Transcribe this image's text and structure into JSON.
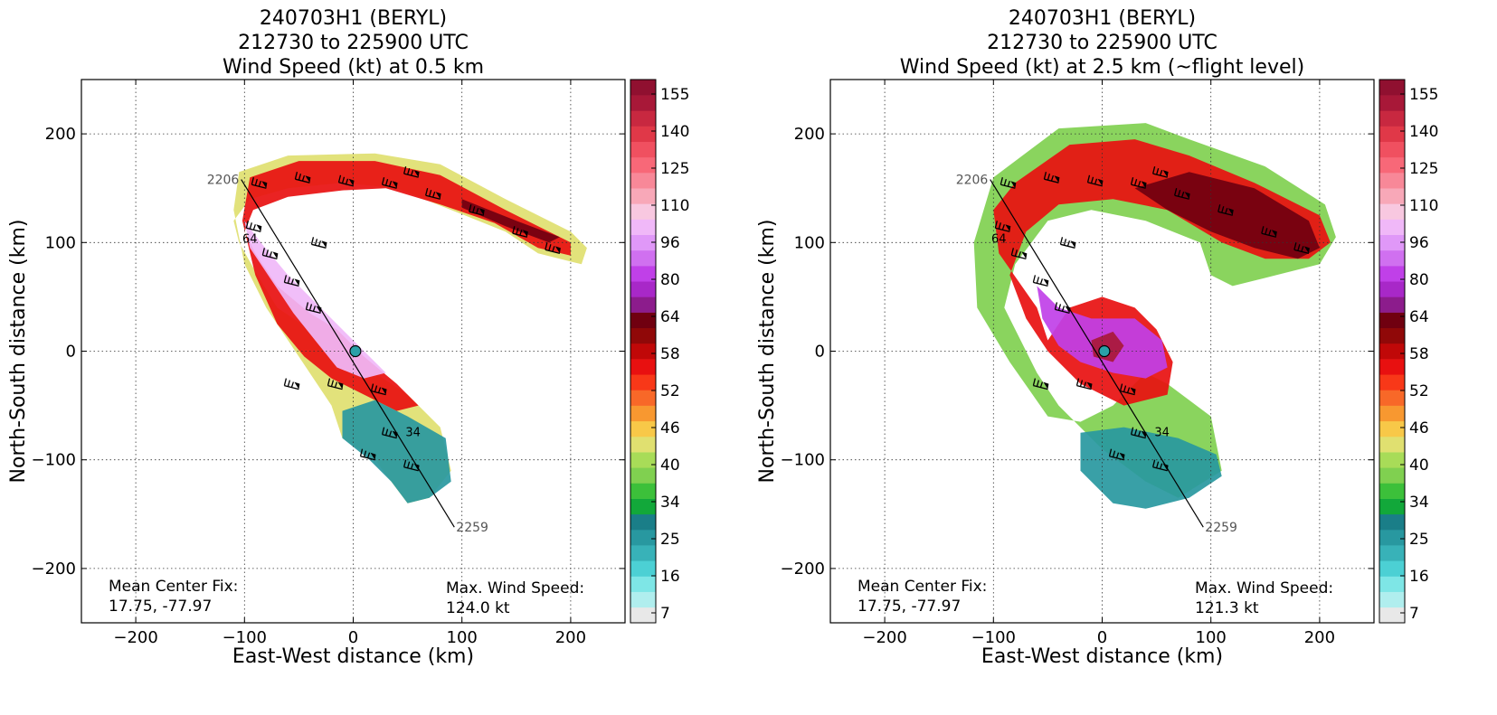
{
  "chart_data": [
    {
      "type": "heatmap",
      "title_lines": [
        "240703H1 (BERYL)",
        "212730 to 225900 UTC",
        "Wind Speed (kt) at 0.5 km"
      ],
      "xlabel": "East-West distance (km)",
      "ylabel": "North-South distance (km)",
      "xlim": [
        -250,
        250
      ],
      "ylim": [
        -250,
        250
      ],
      "xticks": [
        -200,
        -100,
        0,
        100,
        200
      ],
      "yticks": [
        -200,
        -100,
        0,
        100,
        200
      ],
      "grid": true,
      "center_fix_label": "Mean Center Fix:",
      "center_fix_value": "17.75, -77.97",
      "max_wind_label": "Max. Wind Speed:",
      "max_wind_value": "124.0 kt",
      "flight_track": {
        "start_label": "2206",
        "end_label": "2259",
        "start": [
          -103,
          158
        ],
        "end": [
          93,
          -162
        ]
      },
      "contour_labels": [
        "64",
        "34"
      ],
      "colorbar": {
        "tick_labels": [
          "7",
          "16",
          "25",
          "34",
          "40",
          "46",
          "52",
          "58",
          "64",
          "80",
          "96",
          "110",
          "125",
          "140",
          "155"
        ]
      }
    },
    {
      "type": "heatmap",
      "title_lines": [
        "240703H1 (BERYL)",
        "212730 to 225900 UTC",
        "Wind Speed (kt) at 2.5 km (~flight level)"
      ],
      "xlabel": "East-West distance (km)",
      "ylabel": "North-South distance (km)",
      "xlim": [
        -250,
        250
      ],
      "ylim": [
        -250,
        250
      ],
      "xticks": [
        -200,
        -100,
        0,
        100,
        200
      ],
      "yticks": [
        -200,
        -100,
        0,
        100,
        200
      ],
      "grid": true,
      "center_fix_label": "Mean Center Fix:",
      "center_fix_value": "17.75, -77.97",
      "max_wind_label": "Max. Wind Speed:",
      "max_wind_value": "121.3 kt",
      "flight_track": {
        "start_label": "2206",
        "end_label": "2259",
        "start": [
          -103,
          158
        ],
        "end": [
          93,
          -162
        ]
      },
      "contour_labels": [
        "64",
        "34"
      ],
      "colorbar": {
        "tick_labels": [
          "7",
          "16",
          "25",
          "34",
          "40",
          "46",
          "52",
          "58",
          "64",
          "80",
          "96",
          "110",
          "125",
          "140",
          "155"
        ]
      }
    }
  ],
  "colors": {
    "colorbar_bins": [
      "#e8e8e8",
      "#b0eeee",
      "#7ee6e6",
      "#4cd0d4",
      "#38b2b8",
      "#2898a0",
      "#1a7e88",
      "#12a83a",
      "#3cc03a",
      "#80d050",
      "#a8dc58",
      "#e0e070",
      "#f8c848",
      "#f89830",
      "#f86828",
      "#f83818",
      "#e81010",
      "#c00808",
      "#900808",
      "#700010",
      "#8c1c8c",
      "#a828c8",
      "#c040e8",
      "#d070f0",
      "#e098f8",
      "#f0b8f8",
      "#f8c8e0",
      "#f8a8b8",
      "#f88898",
      "#f86878",
      "#f05060",
      "#e03848",
      "#c82840",
      "#a81838",
      "#901030"
    ]
  }
}
